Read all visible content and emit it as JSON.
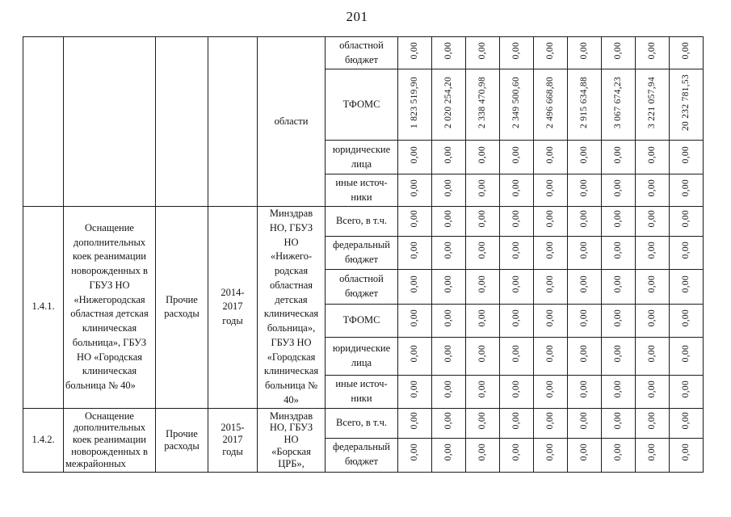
{
  "page": {
    "number": "201"
  },
  "table": {
    "sections": [
      {
        "number": "",
        "name": "",
        "expense_type": "",
        "years": "",
        "executor": "области",
        "rows": [
          {
            "label": "областной бюджет",
            "values": [
              "0,00",
              "0,00",
              "0,00",
              "0,00",
              "0,00",
              "0,00",
              "0,00",
              "0,00",
              "0,00"
            ]
          },
          {
            "label": "ТФОМС",
            "values": [
              "1 823 519,90",
              "2 020 254,20",
              "2 338 470,98",
              "2 349 500,60",
              "2 496 668,80",
              "2 915 634,88",
              "3 067 674,23",
              "3 221 057,94",
              "20 232 781,53"
            ]
          },
          {
            "label": "юридические лица",
            "values": [
              "0,00",
              "0,00",
              "0,00",
              "0,00",
              "0,00",
              "0,00",
              "0,00",
              "0,00",
              "0,00"
            ]
          },
          {
            "label": "иные источ-\nники",
            "values": [
              "0,00",
              "0,00",
              "0,00",
              "0,00",
              "0,00",
              "0,00",
              "0,00",
              "0,00",
              "0,00"
            ]
          }
        ]
      },
      {
        "number": "1.4.1.",
        "name": "Оснащение дополнительных коек реанимации новорожденных в ГБУЗ НО «Нижегородская областная детская клиническая больница», ГБУЗ НО «Городская клиническая больница № 40»",
        "expense_type": "Прочие расходы",
        "years": "2014-\n2017\nгоды",
        "executor": "Минздрав\nНО, ГБУЗ\nНО\n«Нижего-\nродская\nобластная\nдетская\nклиническая\nбольница»,\nГБУЗ НО\n«Городская\nклиническая\nбольница №\n40»",
        "rows": [
          {
            "label": "Всего, в т.ч.",
            "values": [
              "0,00",
              "0,00",
              "0,00",
              "0,00",
              "0,00",
              "0,00",
              "0,00",
              "0,00",
              "0,00"
            ]
          },
          {
            "label": "федеральный бюджет",
            "values": [
              "0,00",
              "0,00",
              "0,00",
              "0,00",
              "0,00",
              "0,00",
              "0,00",
              "0,00",
              "0,00"
            ]
          },
          {
            "label": "областной бюджет",
            "values": [
              "0,00",
              "0,00",
              "0,00",
              "0,00",
              "0,00",
              "0,00",
              "0,00",
              "0,00",
              "0,00"
            ]
          },
          {
            "label": "ТФОМС",
            "values": [
              "0,00",
              "0,00",
              "0,00",
              "0,00",
              "0,00",
              "0,00",
              "0,00",
              "0,00",
              "0,00"
            ]
          },
          {
            "label": "юридические лица",
            "values": [
              "0,00",
              "0,00",
              "0,00",
              "0,00",
              "0,00",
              "0,00",
              "0,00",
              "0,00",
              "0,00"
            ]
          },
          {
            "label": "иные источ-\nники",
            "values": [
              "0,00",
              "0,00",
              "0,00",
              "0,00",
              "0,00",
              "0,00",
              "0,00",
              "0,00",
              "0,00"
            ]
          }
        ]
      },
      {
        "number": "1.4.2.",
        "name": "Оснащение дополнительных коек реанимации новорожденных в межрайонных",
        "expense_type": "Прочие расходы",
        "years": "2015-\n2017\nгоды",
        "executor": "Минздрав\nНО, ГБУЗ\nНО\n«Борская\nЦРБ»,",
        "rows": [
          {
            "label": "Всего, в т.ч.",
            "values": [
              "0,00",
              "0,00",
              "0,00",
              "0,00",
              "0,00",
              "0,00",
              "0,00",
              "0,00",
              "0,00"
            ]
          },
          {
            "label": "федеральный бюджет",
            "values": [
              "0,00",
              "0,00",
              "0,00",
              "0,00",
              "0,00",
              "0,00",
              "0,00",
              "0,00",
              "0,00"
            ]
          }
        ]
      }
    ]
  }
}
